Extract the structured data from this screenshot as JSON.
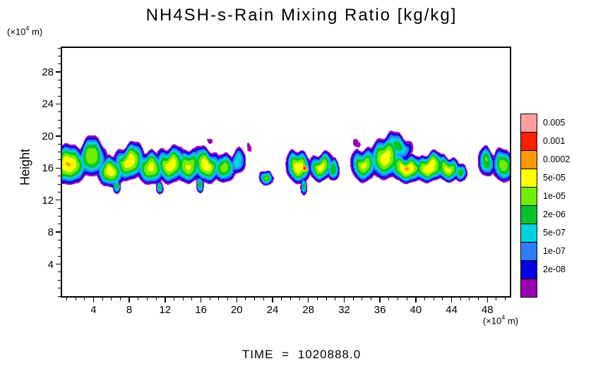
{
  "title": "NH4SH-s-Rain Mixing Ratio [kg/kg]",
  "time_label": "TIME = 1020888.0",
  "axes": {
    "y_label": "Height",
    "unit_prefix": "(×10",
    "unit_sup": "4",
    "unit_suffix": " m)"
  },
  "chart_data": {
    "type": "filled_contour",
    "title": "NH4SH-s-Rain Mixing Ratio [kg/kg]",
    "xlabel": "(×10^4 m)",
    "ylabel": "Height (×10^4 m)",
    "units": "kg/kg",
    "time": "1020888.0",
    "xlim": [
      0.5,
      50.5
    ],
    "ylim": [
      0,
      31
    ],
    "xticks": [
      4,
      8,
      12,
      16,
      20,
      24,
      28,
      32,
      36,
      40,
      44,
      48
    ],
    "yticks": [
      4,
      8,
      12,
      16,
      20,
      24,
      28
    ],
    "grid": false,
    "legend_position": "right",
    "levels_low_to_high": [
      "2e-08",
      "1e-07",
      "5e-07",
      "2e-06",
      "1e-05",
      "5e-05",
      "0.0002",
      "0.001",
      "0.005"
    ],
    "level_labels": [
      "",
      "2e-08",
      "1e-07",
      "5e-07",
      "2e-06",
      "1e-05",
      "5e-05",
      "0.0002",
      "0.001",
      "0.005"
    ],
    "palette": [
      "#9900b4",
      "#0000e0",
      "#2e7cff",
      "#00d2e0",
      "#00c42a",
      "#70ee00",
      "#ffff00",
      "#ff9800",
      "#ff1e00",
      "#ff9e9e"
    ],
    "thresholds": [
      0.1,
      0.19,
      0.28,
      0.37,
      0.46,
      0.55,
      0.64,
      0.73,
      0.82,
      0.91
    ],
    "cloud_layer": {
      "base_height": 13.8,
      "top_height": 20.2,
      "core_height": 16.0
    },
    "cells": [
      {
        "x": 1.2,
        "h": 16.6,
        "rx": 2.6,
        "rh": 2.9,
        "a": 0.74
      },
      {
        "x": 3.8,
        "h": 17.2,
        "rx": 2.0,
        "rh": 2.7,
        "a": 0.63
      },
      {
        "x": 5.9,
        "h": 15.6,
        "rx": 1.8,
        "rh": 2.2,
        "a": 0.7
      },
      {
        "x": 8.0,
        "h": 16.8,
        "rx": 2.1,
        "rh": 2.6,
        "a": 0.71
      },
      {
        "x": 10.4,
        "h": 15.9,
        "rx": 1.9,
        "rh": 2.3,
        "a": 0.67
      },
      {
        "x": 12.6,
        "h": 16.6,
        "rx": 2.0,
        "rh": 2.7,
        "a": 0.72
      },
      {
        "x": 14.6,
        "h": 16.1,
        "rx": 1.8,
        "rh": 2.3,
        "a": 0.66
      },
      {
        "x": 16.6,
        "h": 16.4,
        "rx": 1.9,
        "rh": 2.5,
        "a": 0.71
      },
      {
        "x": 18.6,
        "h": 16.1,
        "rx": 1.6,
        "rh": 2.1,
        "a": 0.61
      },
      {
        "x": 20.1,
        "h": 16.6,
        "rx": 1.1,
        "rh": 1.7,
        "a": 0.46
      },
      {
        "x": 6.6,
        "h": 13.9,
        "rx": 0.55,
        "rh": 1.2,
        "a": 0.56
      },
      {
        "x": 11.4,
        "h": 13.6,
        "rx": 0.5,
        "rh": 1.0,
        "a": 0.52
      },
      {
        "x": 15.9,
        "h": 13.7,
        "rx": 0.5,
        "rh": 1.1,
        "a": 0.53
      },
      {
        "x": 23.3,
        "h": 14.9,
        "rx": 0.95,
        "rh": 1.15,
        "a": 0.58
      },
      {
        "x": 26.9,
        "h": 16.1,
        "rx": 1.6,
        "rh": 2.3,
        "a": 0.72
      },
      {
        "x": 27.6,
        "h": 15.9,
        "rx": 0.55,
        "rh": 0.75,
        "a": 0.88
      },
      {
        "x": 29.4,
        "h": 16.3,
        "rx": 1.6,
        "rh": 2.1,
        "a": 0.69
      },
      {
        "x": 27.5,
        "h": 13.6,
        "rx": 0.45,
        "rh": 1.2,
        "a": 0.51
      },
      {
        "x": 30.8,
        "h": 15.6,
        "rx": 0.8,
        "rh": 1.5,
        "a": 0.55
      },
      {
        "x": 34.2,
        "h": 16.6,
        "rx": 1.7,
        "rh": 2.5,
        "a": 0.67
      },
      {
        "x": 36.6,
        "h": 17.1,
        "rx": 2.1,
        "rh": 2.9,
        "a": 0.7
      },
      {
        "x": 39.0,
        "h": 16.1,
        "rx": 2.4,
        "rh": 2.1,
        "a": 0.74
      },
      {
        "x": 41.5,
        "h": 16.0,
        "rx": 2.2,
        "rh": 2.0,
        "a": 0.73
      },
      {
        "x": 43.6,
        "h": 15.9,
        "rx": 1.7,
        "rh": 1.8,
        "a": 0.68
      },
      {
        "x": 38.0,
        "h": 18.6,
        "rx": 2.0,
        "rh": 1.9,
        "a": 0.5
      },
      {
        "x": 45.0,
        "h": 15.6,
        "rx": 0.9,
        "rh": 1.4,
        "a": 0.55
      },
      {
        "x": 47.9,
        "h": 16.6,
        "rx": 1.1,
        "rh": 2.0,
        "a": 0.56
      },
      {
        "x": 49.8,
        "h": 16.4,
        "rx": 1.5,
        "rh": 2.4,
        "a": 0.62
      },
      {
        "x": 21.4,
        "h": 18.4,
        "rx": 0.5,
        "rh": 0.8,
        "a": 0.15
      },
      {
        "x": 33.4,
        "h": 19.2,
        "rx": 0.7,
        "rh": 0.9,
        "a": 0.17
      },
      {
        "x": 17.0,
        "h": 19.6,
        "rx": 0.6,
        "rh": 0.7,
        "a": 0.14
      }
    ]
  }
}
